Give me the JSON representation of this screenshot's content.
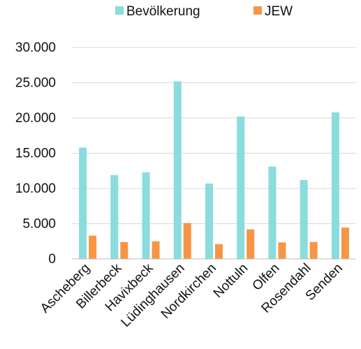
{
  "chart_data": {
    "type": "bar",
    "categories": [
      "Ascheberg",
      "Billerbeck",
      "Havixbeck",
      "Lüdinghausen",
      "Nordkirchen",
      "Nottuln",
      "Olfen",
      "Rosendahl",
      "Senden"
    ],
    "series": [
      {
        "name": "Bevölkerung",
        "color": "#8ADCDD",
        "values": [
          15800,
          11900,
          12300,
          25200,
          10700,
          20200,
          13100,
          11200,
          20800
        ]
      },
      {
        "name": "JEW",
        "color": "#F79545",
        "values": [
          3300,
          2400,
          2500,
          5100,
          2100,
          4200,
          2350,
          2400,
          4450
        ]
      }
    ],
    "yticks": [
      "0",
      "5.000",
      "10.000",
      "15.000",
      "20.000",
      "25.000",
      "30.000"
    ],
    "ylim": [
      0,
      30000
    ],
    "grid": true,
    "legend_position": "top",
    "gridline_color": "#D9D9D9",
    "axis_color": "#BFBFBF"
  }
}
